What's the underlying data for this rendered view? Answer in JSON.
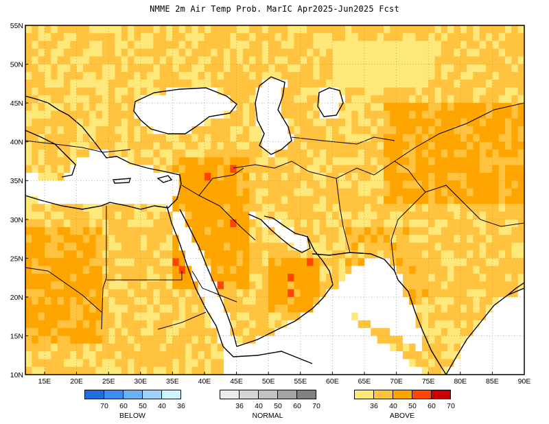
{
  "title": "NMME 2m Air Temp Prob. MarIC  Apr2025-Jun2025 Fcst",
  "map": {
    "lat_labels": [
      "55N",
      "50N",
      "45N",
      "40N",
      "35N",
      "30N",
      "25N",
      "20N",
      "15N",
      "10N"
    ],
    "lon_labels": [
      "15E",
      "20E",
      "25E",
      "30E",
      "35E",
      "40E",
      "45E",
      "50E",
      "55E",
      "60E",
      "65E",
      "70E",
      "75E",
      "80E",
      "85E",
      "90E"
    ],
    "lat_range": [
      10,
      55
    ],
    "lon_range": [
      12,
      90
    ],
    "grid": "dotted",
    "colors": {
      "above_36": "#ffe87a",
      "above_40": "#ffc340",
      "above_50": "#ffa500",
      "above_60": "#ff4500",
      "above_70": "#cc0000",
      "water": "#ffffff"
    }
  },
  "legend": {
    "below": {
      "title": "BELOW",
      "ticks": [
        "70",
        "60",
        "50",
        "40",
        "36"
      ],
      "colors": [
        "#1f6fe0",
        "#3b8ef0",
        "#6ab0f5",
        "#9dd3fb",
        "#cdf5fb"
      ]
    },
    "normal": {
      "title": "NORMAL",
      "ticks": [
        "36",
        "40",
        "50",
        "60",
        "70"
      ],
      "colors": [
        "#ececec",
        "#d6d6d6",
        "#c2c2c2",
        "#a5a5a5",
        "#808080"
      ]
    },
    "above": {
      "title": "ABOVE",
      "ticks": [
        "36",
        "40",
        "50",
        "60",
        "70"
      ],
      "colors": [
        "#ffe87a",
        "#ffc340",
        "#ffa500",
        "#ff4500",
        "#cc0000"
      ]
    }
  }
}
